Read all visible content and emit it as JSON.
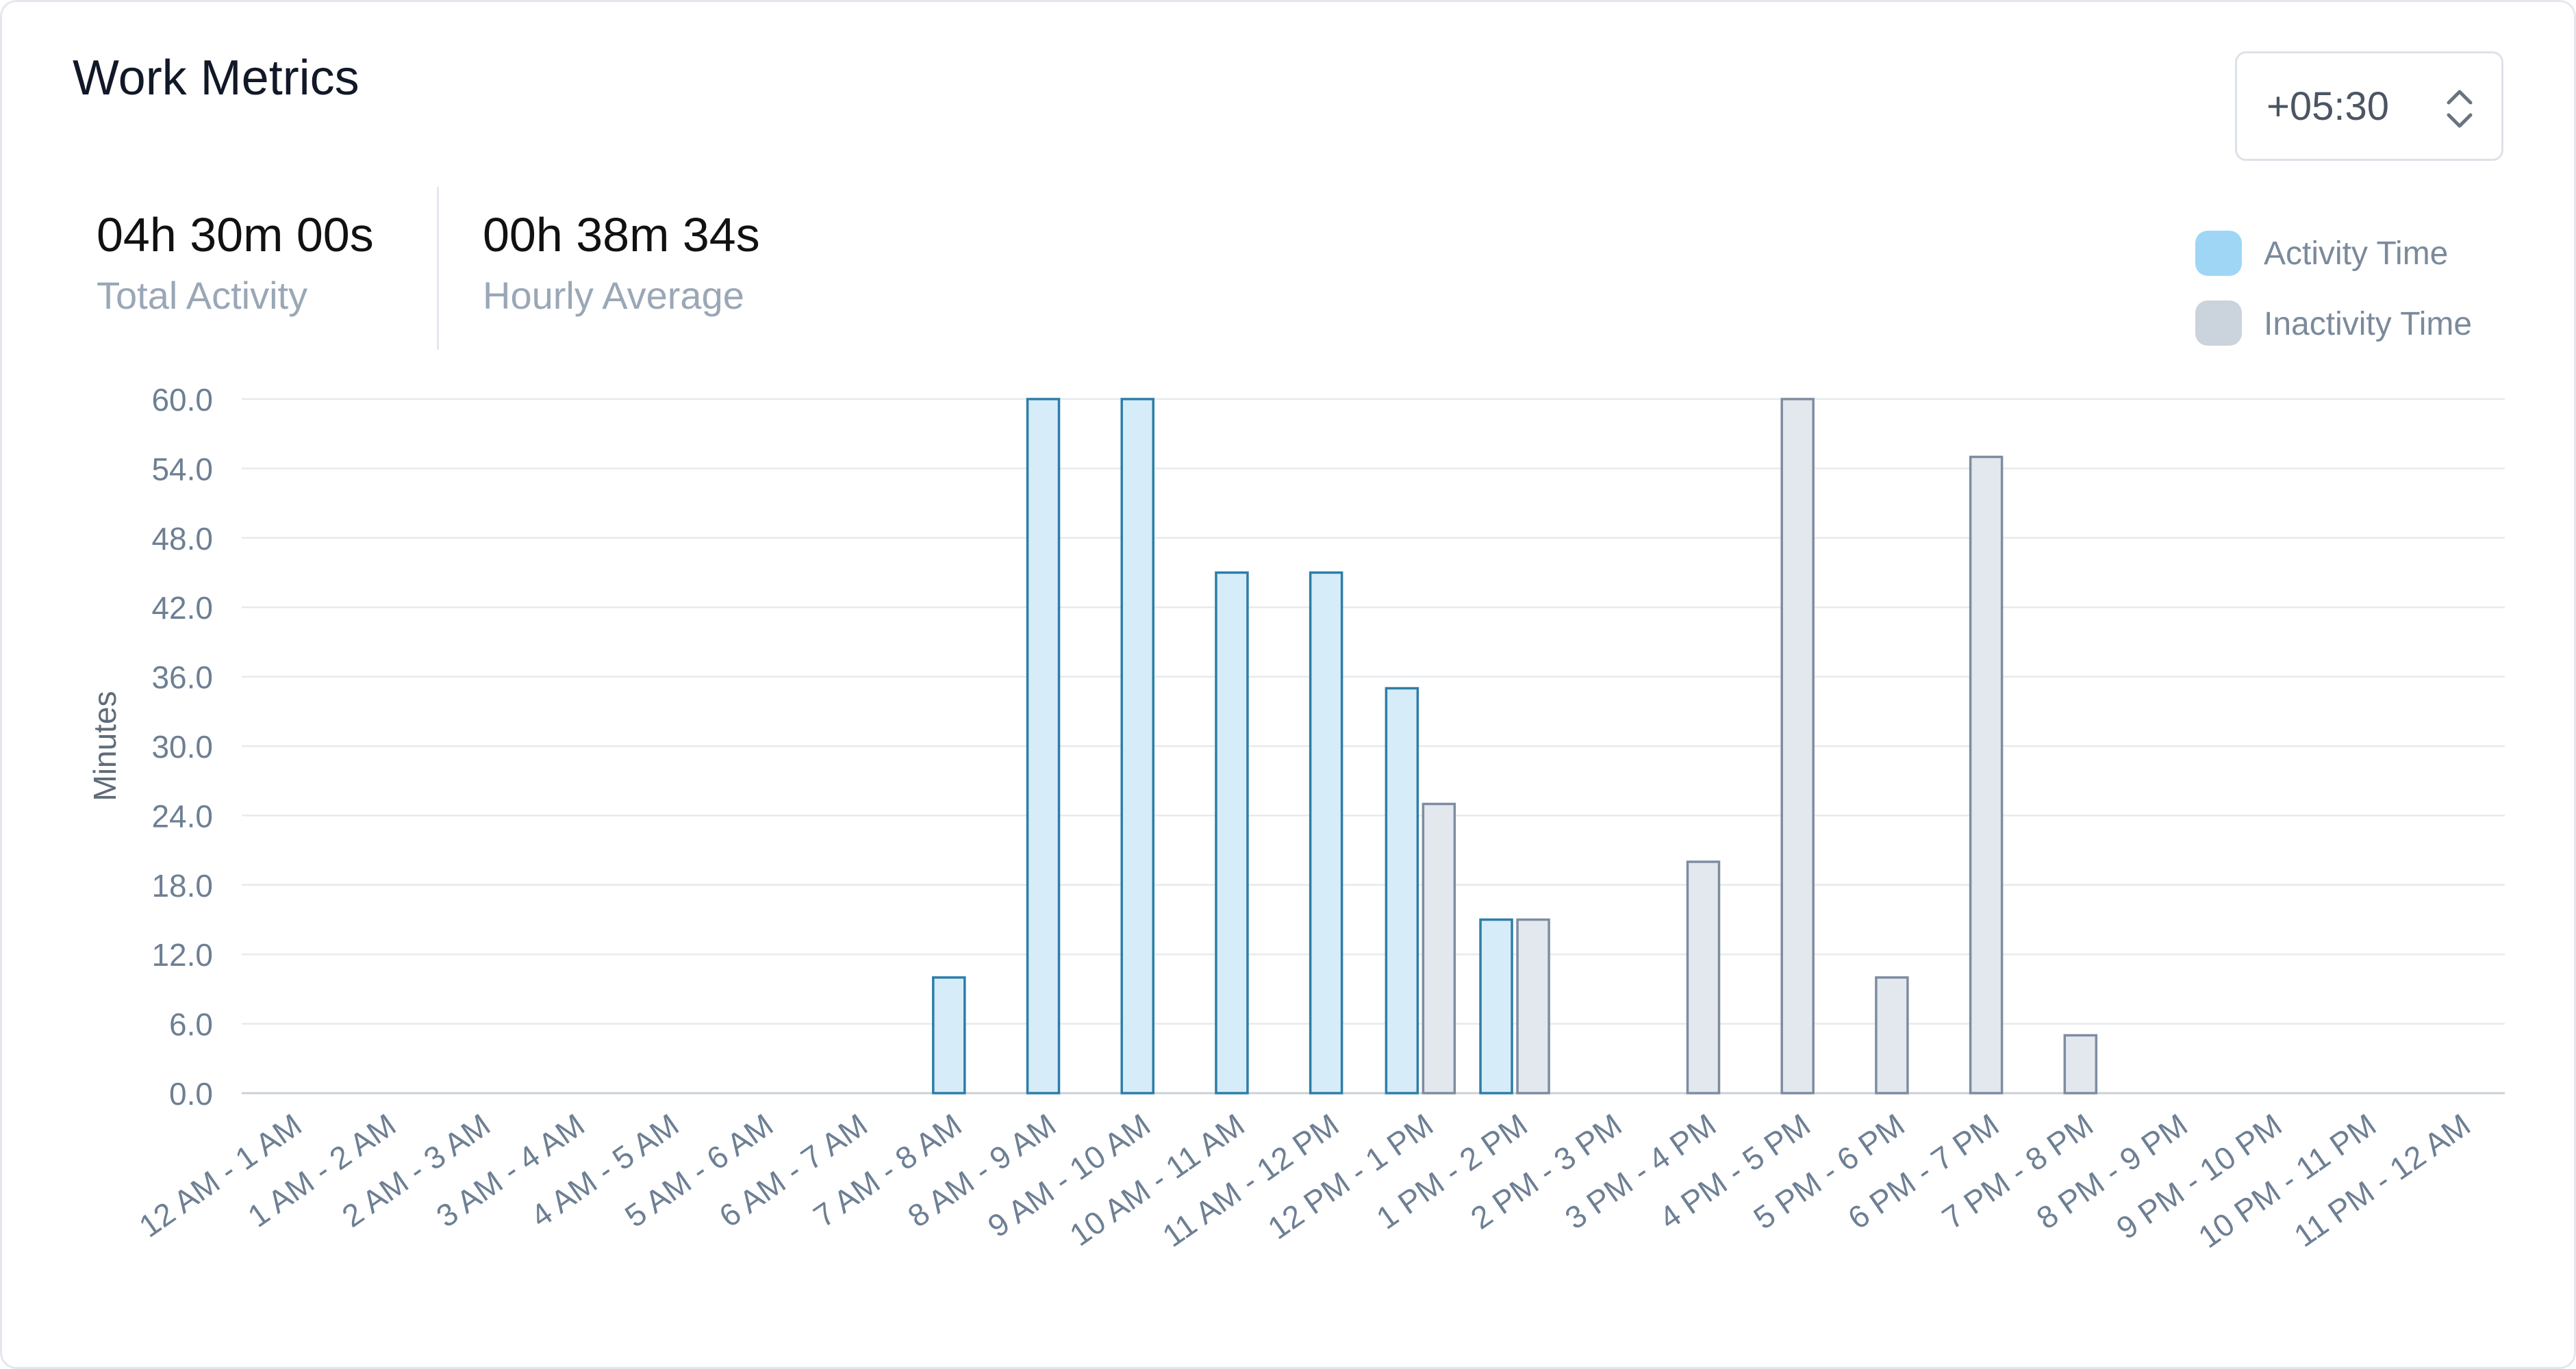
{
  "header": {
    "title": "Work Metrics"
  },
  "timezone": {
    "value": "+05:30",
    "icon": "chevron-up-down-icon"
  },
  "stats": {
    "total": {
      "value": "04h 30m 00s",
      "label": "Total Activity"
    },
    "average": {
      "value": "00h 38m 34s",
      "label": "Hourly Average"
    }
  },
  "legend": {
    "activity": {
      "label": "Activity Time",
      "color": "#9fd6f5"
    },
    "inactivity": {
      "label": "Inactivity Time",
      "color": "#cbd3dc"
    }
  },
  "chart_data": {
    "type": "bar",
    "ylabel": "Minutes",
    "ylim": [
      0,
      60
    ],
    "yticks": [
      "0.0",
      "6.0",
      "12.0",
      "18.0",
      "24.0",
      "30.0",
      "36.0",
      "42.0",
      "48.0",
      "54.0",
      "60.0"
    ],
    "grid": true,
    "legend_position": "top-right",
    "categories": [
      "12 AM - 1 AM",
      "1 AM - 2 AM",
      "2 AM - 3 AM",
      "3 AM - 4 AM",
      "4 AM - 5 AM",
      "5 AM - 6 AM",
      "6 AM - 7 AM",
      "7 AM - 8 AM",
      "8 AM - 9 AM",
      "9 AM - 10 AM",
      "10 AM - 11 AM",
      "11 AM - 12 PM",
      "12 PM - 1 PM",
      "1 PM - 2 PM",
      "2 PM - 3 PM",
      "3 PM - 4 PM",
      "4 PM - 5 PM",
      "5 PM - 6 PM",
      "6 PM - 7 PM",
      "7 PM - 8 PM",
      "8 PM - 9 PM",
      "9 PM - 10 PM",
      "10 PM - 11 PM",
      "11 PM - 12 AM"
    ],
    "series": [
      {
        "name": "Activity Time",
        "fill": "#d6ecf8",
        "stroke": "#2d7ea8",
        "values": [
          0,
          0,
          0,
          0,
          0,
          0,
          0,
          10,
          60,
          60,
          45,
          45,
          35,
          15,
          0,
          0,
          0,
          0,
          0,
          0,
          0,
          0,
          0,
          0
        ]
      },
      {
        "name": "Inactivity Time",
        "fill": "#e3e8ee",
        "stroke": "#7e8da0",
        "values": [
          0,
          0,
          0,
          0,
          0,
          0,
          0,
          0,
          0,
          0,
          0,
          0,
          25,
          15,
          0,
          20,
          60,
          10,
          55,
          5,
          0,
          0,
          0,
          0
        ]
      }
    ]
  }
}
